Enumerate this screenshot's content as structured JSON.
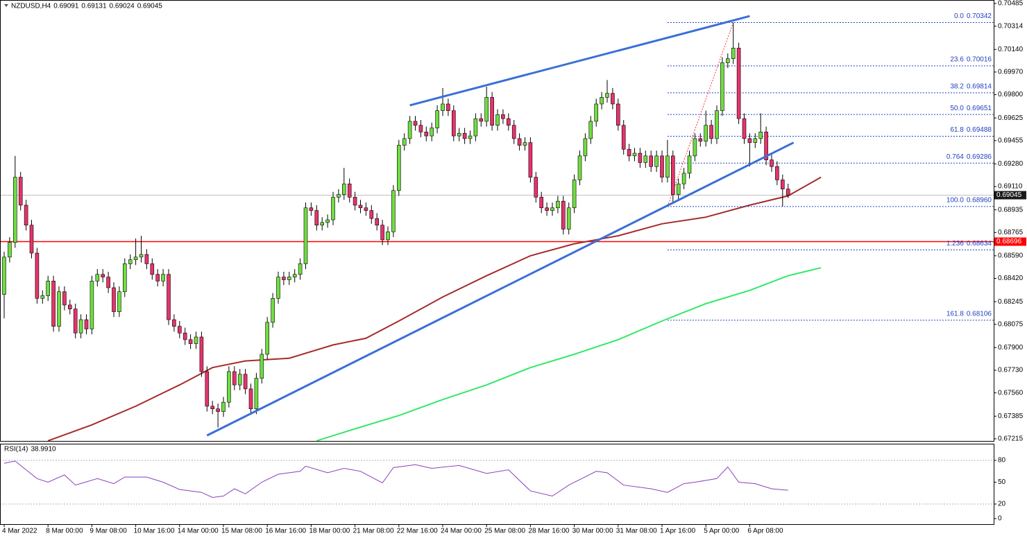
{
  "chart_data": [
    {
      "type": "candlestick",
      "title": "NZDUSD,H4",
      "categories": [
        "4 Mar 2022",
        null,
        null,
        null,
        null,
        null,
        null,
        null,
        "8 Mar 00:00",
        null,
        null,
        null,
        null,
        null,
        null,
        null,
        "9 Mar 08:00",
        null,
        null,
        null,
        null,
        null,
        null,
        null,
        "10 Mar 16:00",
        null,
        null,
        null,
        null,
        null,
        null,
        null,
        "14 Mar 00:00",
        null,
        null,
        null,
        null,
        null,
        null,
        null,
        "15 Mar 08:00",
        null,
        null,
        null,
        null,
        null,
        null,
        null,
        "16 Mar 16:00",
        null,
        null,
        null,
        null,
        null,
        null,
        null,
        "18 Mar 00:00",
        null,
        null,
        null,
        null,
        null,
        null,
        null,
        "21 Mar 08:00",
        null,
        null,
        null,
        null,
        null,
        null,
        null,
        "22 Mar 16:00",
        null,
        null,
        null,
        null,
        null,
        null,
        null,
        "24 Mar 00:00",
        null,
        null,
        null,
        null,
        null,
        null,
        null,
        "25 Mar 08:00",
        null,
        null,
        null,
        null,
        null,
        null,
        null,
        "28 Mar 16:00",
        null,
        null,
        null,
        null,
        null,
        null,
        null,
        "30 Mar 00:00",
        null,
        null,
        null,
        null,
        null,
        null,
        null,
        "31 Mar 08:00",
        null,
        null,
        null,
        null,
        null,
        null,
        null,
        "1 Apr 16:00",
        null,
        null,
        null,
        null,
        null,
        null,
        null,
        "5 Apr 00:00",
        null,
        null,
        null,
        null,
        null,
        null,
        null,
        "6 Apr 08:00",
        null,
        null,
        null,
        null,
        null,
        null,
        null
      ],
      "open": [
        0.683,
        0.6858,
        0.6869,
        0.6918,
        0.6897,
        0.6882,
        0.6861,
        0.6827,
        0.6829,
        0.684,
        0.6806,
        0.6832,
        0.6822,
        0.6819,
        0.6801,
        0.6811,
        0.6804,
        0.684,
        0.6845,
        0.6843,
        0.6835,
        0.6817,
        0.6832,
        0.6853,
        0.6856,
        0.6858,
        0.686,
        0.6853,
        0.6845,
        0.684,
        0.6845,
        0.6811,
        0.6806,
        0.6801,
        0.6796,
        0.6793,
        0.6798,
        0.6772,
        0.6746,
        0.6744,
        0.6742,
        0.6749,
        0.6772,
        0.6762,
        0.677,
        0.6759,
        0.6744,
        0.6767,
        0.6785,
        0.6809,
        0.6827,
        0.6843,
        0.6841,
        0.6843,
        0.6845,
        0.6853,
        0.6895,
        0.6893,
        0.6882,
        0.6884,
        0.6886,
        0.6903,
        0.6905,
        0.6913,
        0.6903,
        0.6897,
        0.6895,
        0.6893,
        0.6887,
        0.6882,
        0.6871,
        0.6877,
        0.6908,
        0.6942,
        0.6947,
        0.696,
        0.6957,
        0.6952,
        0.6949,
        0.6955,
        0.6968,
        0.6973,
        0.6968,
        0.6949,
        0.6951,
        0.6947,
        0.6949,
        0.6962,
        0.696,
        0.6978,
        0.6957,
        0.6965,
        0.6962,
        0.6957,
        0.6947,
        0.6942,
        0.6944,
        0.6918,
        0.6903,
        0.6895,
        0.6893,
        0.6895,
        0.69,
        0.6879,
        0.6895,
        0.6916,
        0.6934,
        0.6947,
        0.696,
        0.6973,
        0.6978,
        0.6981,
        0.6973,
        0.6957,
        0.6939,
        0.6934,
        0.6936,
        0.6929,
        0.6934,
        0.6926,
        0.6934,
        0.6918,
        0.6934,
        0.6905,
        0.6913,
        0.6921,
        0.6934,
        0.6947,
        0.6945,
        0.6957,
        0.6947,
        0.6968,
        0.7004,
        0.7007,
        0.7015,
        0.6962,
        0.6947,
        0.6944,
        0.6947,
        0.6952,
        0.6931,
        0.6926,
        0.6916,
        0.69091
      ],
      "high": [
        0.6862,
        0.6873,
        0.6934,
        0.6922,
        0.6901,
        0.6886,
        0.6865,
        0.6833,
        0.6844,
        0.6844,
        0.6836,
        0.6836,
        0.6826,
        0.6823,
        0.6815,
        0.6815,
        0.6844,
        0.6849,
        0.6849,
        0.6847,
        0.6839,
        0.6836,
        0.6857,
        0.686,
        0.6872,
        0.6874,
        0.6864,
        0.6857,
        0.6849,
        0.6849,
        0.6849,
        0.6815,
        0.681,
        0.6805,
        0.68,
        0.6802,
        0.6802,
        0.6776,
        0.675,
        0.6748,
        0.6753,
        0.6776,
        0.6776,
        0.6774,
        0.6774,
        0.6763,
        0.6771,
        0.6789,
        0.6813,
        0.6831,
        0.6847,
        0.6847,
        0.6847,
        0.6849,
        0.6857,
        0.6899,
        0.6899,
        0.6897,
        0.6888,
        0.689,
        0.6907,
        0.6909,
        0.6925,
        0.6917,
        0.6907,
        0.6901,
        0.6899,
        0.6897,
        0.6891,
        0.6886,
        0.6881,
        0.6912,
        0.6946,
        0.6951,
        0.6964,
        0.6964,
        0.6961,
        0.6956,
        0.6959,
        0.6972,
        0.6985,
        0.6977,
        0.6972,
        0.6955,
        0.6955,
        0.6953,
        0.6966,
        0.6966,
        0.6986,
        0.6982,
        0.6969,
        0.6969,
        0.6966,
        0.6961,
        0.6951,
        0.6948,
        0.6948,
        0.6922,
        0.6907,
        0.6899,
        0.6899,
        0.6904,
        0.6904,
        0.6899,
        0.692,
        0.6938,
        0.6951,
        0.6964,
        0.6977,
        0.6982,
        0.6991,
        0.6985,
        0.6977,
        0.6961,
        0.6943,
        0.694,
        0.694,
        0.6938,
        0.6938,
        0.6938,
        0.6938,
        0.6946,
        0.6938,
        0.6917,
        0.6925,
        0.6938,
        0.6951,
        0.6951,
        0.6968,
        0.6961,
        0.6972,
        0.7008,
        0.7011,
        0.70342,
        0.7019,
        0.6966,
        0.6951,
        0.6951,
        0.6966,
        0.6956,
        0.6935,
        0.693,
        0.692,
        0.69131
      ],
      "low": [
        0.6812,
        0.6854,
        0.6865,
        0.6893,
        0.6878,
        0.6857,
        0.6823,
        0.6823,
        0.6825,
        0.6802,
        0.6802,
        0.6818,
        0.6815,
        0.6797,
        0.6797,
        0.68,
        0.68,
        0.6836,
        0.6839,
        0.6831,
        0.6813,
        0.6813,
        0.6828,
        0.6849,
        0.6852,
        0.6854,
        0.6849,
        0.6841,
        0.6836,
        0.6836,
        0.6807,
        0.6802,
        0.6797,
        0.6792,
        0.6789,
        0.6789,
        0.6768,
        0.6742,
        0.674,
        0.673,
        0.6738,
        0.6745,
        0.6758,
        0.6758,
        0.6755,
        0.674,
        0.674,
        0.6763,
        0.6781,
        0.6805,
        0.6823,
        0.6837,
        0.6837,
        0.6839,
        0.6841,
        0.6849,
        0.6889,
        0.6878,
        0.6878,
        0.688,
        0.6882,
        0.6899,
        0.6901,
        0.6899,
        0.6893,
        0.6891,
        0.6889,
        0.6883,
        0.6878,
        0.6867,
        0.6867,
        0.6873,
        0.6904,
        0.6938,
        0.6943,
        0.6953,
        0.6948,
        0.6945,
        0.6945,
        0.6951,
        0.6964,
        0.6964,
        0.6945,
        0.6945,
        0.6943,
        0.6943,
        0.6945,
        0.6956,
        0.6956,
        0.6953,
        0.6953,
        0.6958,
        0.6953,
        0.6943,
        0.6938,
        0.6938,
        0.6914,
        0.6899,
        0.6891,
        0.6889,
        0.6889,
        0.6891,
        0.6875,
        0.6875,
        0.6891,
        0.6912,
        0.693,
        0.6943,
        0.6956,
        0.6969,
        0.6974,
        0.6969,
        0.6953,
        0.6935,
        0.693,
        0.693,
        0.6925,
        0.6925,
        0.6922,
        0.6922,
        0.6914,
        0.6914,
        0.6898,
        0.6901,
        0.6909,
        0.6917,
        0.693,
        0.6941,
        0.6941,
        0.6943,
        0.6943,
        0.6964,
        0.7,
        0.7003,
        0.6958,
        0.6943,
        0.6926,
        0.694,
        0.6943,
        0.6927,
        0.6922,
        0.6912,
        0.6896,
        0.69024
      ],
      "close": [
        0.6858,
        0.6869,
        0.6918,
        0.6897,
        0.6882,
        0.6861,
        0.6827,
        0.6829,
        0.684,
        0.6806,
        0.6832,
        0.6822,
        0.6819,
        0.6801,
        0.6811,
        0.6804,
        0.684,
        0.6845,
        0.6843,
        0.6835,
        0.6817,
        0.6832,
        0.6853,
        0.6856,
        0.6858,
        0.686,
        0.6853,
        0.6845,
        0.684,
        0.6845,
        0.6811,
        0.6806,
        0.6801,
        0.6796,
        0.6793,
        0.6798,
        0.6772,
        0.6746,
        0.6744,
        0.6742,
        0.6749,
        0.6772,
        0.6762,
        0.677,
        0.6759,
        0.6744,
        0.6767,
        0.6785,
        0.6809,
        0.6827,
        0.6843,
        0.6841,
        0.6843,
        0.6845,
        0.6853,
        0.6895,
        0.6893,
        0.6882,
        0.6884,
        0.6886,
        0.6903,
        0.6905,
        0.6913,
        0.6903,
        0.6897,
        0.6895,
        0.6893,
        0.6887,
        0.6882,
        0.6871,
        0.6877,
        0.6908,
        0.6942,
        0.6947,
        0.696,
        0.6957,
        0.6952,
        0.6949,
        0.6955,
        0.6968,
        0.6973,
        0.6968,
        0.6949,
        0.6951,
        0.6947,
        0.6949,
        0.6962,
        0.696,
        0.6978,
        0.6957,
        0.6965,
        0.6962,
        0.6957,
        0.6947,
        0.6942,
        0.6944,
        0.6918,
        0.6903,
        0.6895,
        0.6893,
        0.6895,
        0.69,
        0.6879,
        0.6895,
        0.6916,
        0.6934,
        0.6947,
        0.696,
        0.6973,
        0.6978,
        0.6981,
        0.6973,
        0.6957,
        0.6939,
        0.6934,
        0.6936,
        0.6929,
        0.6934,
        0.6926,
        0.6934,
        0.6918,
        0.6934,
        0.6905,
        0.6913,
        0.6921,
        0.6934,
        0.6947,
        0.6945,
        0.6957,
        0.6947,
        0.6968,
        0.7004,
        0.7007,
        0.7015,
        0.6962,
        0.6947,
        0.6944,
        0.6947,
        0.6952,
        0.6931,
        0.6926,
        0.6916,
        0.69091,
        0.69045
      ],
      "up_color": "#70dd40",
      "down_color": "#e6336b",
      "wick_color": "#000000",
      "ylim": [
        0.67199,
        0.70511
      ],
      "yticks": [
        0.70485,
        0.70314,
        {
          "value": 0.7014,
          "label": "0.70140"
        },
        {
          "value": 0.6997,
          "label": "0.69970"
        },
        {
          "value": 0.698,
          "label": "0.69800"
        },
        0.69625,
        0.69455,
        {
          "value": 0.6928,
          "label": "0.69280"
        },
        {
          "value": 0.6911,
          "label": "0.69110"
        },
        0.68935,
        0.68765,
        {
          "value": 0.6859,
          "label": "0.68590"
        },
        {
          "value": 0.6842,
          "label": "0.68420"
        },
        0.68245,
        0.68075,
        {
          "value": 0.679,
          "label": "0.67900"
        },
        {
          "value": 0.6773,
          "label": "0.67730"
        },
        {
          "value": 0.6756,
          "label": "0.67560"
        },
        0.67385,
        0.67215
      ],
      "moving_averages": [
        {
          "color": "#a52a2a",
          "x": [
            8,
            16,
            24,
            32,
            38,
            44,
            52,
            60,
            66,
            72,
            80,
            88,
            96,
            104,
            112,
            120,
            128,
            136,
            143,
            149
          ],
          "values": [
            0.672,
            0.6732,
            0.6746,
            0.6762,
            0.6775,
            0.678,
            0.6782,
            0.6792,
            0.6797,
            0.681,
            0.6828,
            0.6844,
            0.6859,
            0.6868,
            0.6874,
            0.6883,
            0.6888,
            0.6897,
            0.6904,
            0.6918
          ]
        },
        {
          "color": "#33e866",
          "x": [
            57,
            64,
            72,
            80,
            88,
            96,
            104,
            112,
            120,
            128,
            136,
            143,
            149
          ],
          "values": [
            0.672,
            0.6729,
            0.6739,
            0.6751,
            0.6762,
            0.6775,
            0.6785,
            0.6796,
            0.681,
            0.6823,
            0.6833,
            0.6844,
            0.685
          ]
        }
      ],
      "trendlines": [
        {
          "color": "#3a6fd8",
          "x": [
            37,
            144
          ],
          "y": [
            0.6724,
            0.6944
          ]
        },
        {
          "color": "#3a6fd8",
          "x": [
            74,
            136
          ],
          "y": [
            0.6972,
            0.7039
          ]
        }
      ],
      "hlines": [
        {
          "value": 0.68696,
          "color": "#ff0000"
        }
      ],
      "fibonacci": {
        "color": "#1f3fbf",
        "anchor_color": "#ff3030",
        "x": [
          121,
          133
        ],
        "levels": [
          {
            "label": "0.0",
            "value": 0.70342
          },
          {
            "label": "23.6",
            "value": 0.70016
          },
          {
            "label": "38.2",
            "value": 0.69814
          },
          {
            "label": "50.0",
            "value": 0.69651
          },
          {
            "label": "61.8",
            "value": 0.69488
          },
          {
            "label": "0.764",
            "value": 0.69286
          },
          {
            "label": "100.0",
            "value": 0.6896,
            "value_label": "0.68960"
          },
          {
            "label": "1.236",
            "value": 0.68634
          },
          {
            "label": "161.8",
            "value": 0.68106
          }
        ]
      }
    },
    {
      "type": "line",
      "title": "RSI(14)",
      "color": "#8a3fbf",
      "current": {
        "value": 38.991,
        "label": "38.9910"
      },
      "x": [
        0,
        2,
        6,
        8,
        11,
        13,
        17,
        20,
        22,
        26,
        29,
        32,
        36,
        38,
        40,
        42,
        44,
        47,
        50,
        54,
        55,
        59,
        62,
        65,
        69,
        71,
        75,
        78,
        83,
        88,
        92,
        96,
        100,
        103,
        108,
        110,
        113,
        118,
        121,
        124,
        126,
        130,
        132,
        134,
        137,
        140,
        143
      ],
      "values": [
        76,
        79,
        55,
        50,
        60,
        46,
        55,
        48,
        57,
        57,
        50,
        40,
        36,
        29,
        31,
        41,
        34,
        50,
        61,
        65,
        72,
        63,
        69,
        65,
        49,
        70,
        74,
        69,
        73,
        62,
        67,
        38,
        31,
        46,
        65,
        63,
        46,
        41,
        36,
        48,
        50,
        55,
        71,
        50,
        48,
        41,
        38.991
      ],
      "ylim": [
        0,
        100
      ],
      "yticks": [
        80,
        50,
        20,
        0
      ],
      "levels": [
        80,
        20
      ]
    }
  ]
}
